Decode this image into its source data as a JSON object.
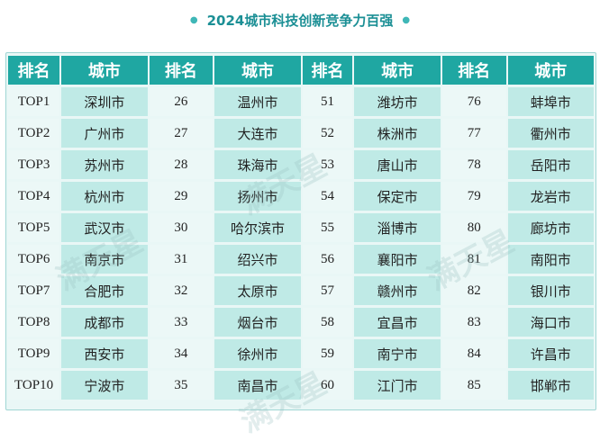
{
  "title": "2024城市科技创新竞争力百强",
  "headers": [
    "排名",
    "城市",
    "排名",
    "城市",
    "排名",
    "城市",
    "排名",
    "城市"
  ],
  "rows": [
    [
      "TOP1",
      "深圳市",
      "26",
      "温州市",
      "51",
      "潍坊市",
      "76",
      "蚌埠市"
    ],
    [
      "TOP2",
      "广州市",
      "27",
      "大连市",
      "52",
      "株洲市",
      "77",
      "衢州市"
    ],
    [
      "TOP3",
      "苏州市",
      "28",
      "珠海市",
      "53",
      "唐山市",
      "78",
      "岳阳市"
    ],
    [
      "TOP4",
      "杭州市",
      "29",
      "扬州市",
      "54",
      "保定市",
      "79",
      "龙岩市"
    ],
    [
      "TOP5",
      "武汉市",
      "30",
      "哈尔滨市",
      "55",
      "淄博市",
      "80",
      "廊坊市"
    ],
    [
      "TOP6",
      "南京市",
      "31",
      "绍兴市",
      "56",
      "襄阳市",
      "81",
      "南阳市"
    ],
    [
      "TOP7",
      "合肥市",
      "32",
      "太原市",
      "57",
      "赣州市",
      "82",
      "银川市"
    ],
    [
      "TOP8",
      "成都市",
      "33",
      "烟台市",
      "58",
      "宜昌市",
      "83",
      "海口市"
    ],
    [
      "TOP9",
      "西安市",
      "34",
      "徐州市",
      "59",
      "南宁市",
      "84",
      "许昌市"
    ],
    [
      "TOP10",
      "宁波市",
      "35",
      "南昌市",
      "60",
      "江门市",
      "85",
      "邯郸市"
    ]
  ],
  "watermark": "满天星",
  "colors": {
    "title": "#1b8f95",
    "header_bg": "#1fa7a2",
    "city_bg": "#bfeae6",
    "rank_bg": "#ecf8f7"
  }
}
